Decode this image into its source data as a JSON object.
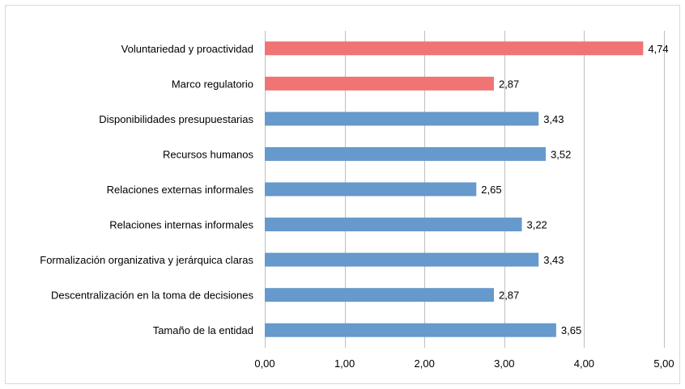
{
  "chart_data": {
    "type": "bar",
    "orientation": "horizontal",
    "categories": [
      "Voluntariedad y proactividad",
      "Marco regulatorio",
      "Disponibilidades presupuestarias",
      "Recursos humanos",
      "Relaciones externas informales",
      "Relaciones internas informales",
      "Formalización organizativa y jerárquica claras",
      "Descentralización en la toma de decisiones",
      "Tamaño de la entidad"
    ],
    "values": [
      4.74,
      2.87,
      3.43,
      3.52,
      2.65,
      3.22,
      3.43,
      2.87,
      3.65
    ],
    "value_labels": [
      "4,74",
      "2,87",
      "3,43",
      "3,52",
      "2,65",
      "3,22",
      "3,43",
      "2,87",
      "3,65"
    ],
    "bar_colors": [
      "#f07474",
      "#f07474",
      "#6699cc",
      "#6699cc",
      "#6699cc",
      "#6699cc",
      "#6699cc",
      "#6699cc",
      "#6699cc"
    ],
    "xlim": [
      0,
      5
    ],
    "x_ticks": [
      0,
      1,
      2,
      3,
      4,
      5
    ],
    "x_tick_labels": [
      "0,00",
      "1,00",
      "2,00",
      "3,00",
      "4,00",
      "5,00"
    ],
    "grid": "vertical",
    "legend": "none"
  },
  "colors": {
    "highlight": "#f07474",
    "default": "#6699cc",
    "grid": "#bfbfbf",
    "border": "#d9d9d9"
  }
}
